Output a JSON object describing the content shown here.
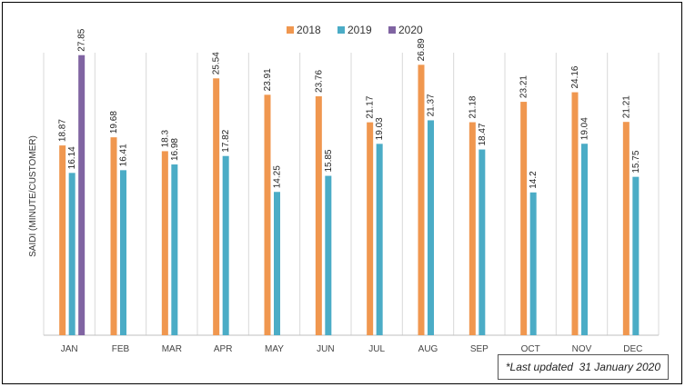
{
  "chart_data": {
    "type": "bar",
    "title": "",
    "xlabel": "",
    "ylabel": "SAIDI (MINUTE/CUSTOMER)",
    "ylim": [
      0,
      30
    ],
    "grid": "vertical category dividers",
    "legend_position": "top",
    "categories": [
      "JAN",
      "FEB",
      "MAR",
      "APR",
      "MAY",
      "JUN",
      "JUL",
      "AUG",
      "SEP",
      "OCT",
      "NOV",
      "DEC"
    ],
    "series": [
      {
        "name": "2018",
        "color": "#f0974f",
        "values": [
          18.87,
          19.68,
          18.3,
          25.54,
          23.91,
          23.76,
          21.17,
          26.89,
          21.18,
          23.21,
          24.16,
          21.21
        ],
        "labels": [
          "18.87",
          "19.68",
          "18.3",
          "25.54",
          "23.91",
          "23.76",
          "21.17",
          "26.89",
          "21.18",
          "23.21",
          "24.16",
          "21.21"
        ]
      },
      {
        "name": "2019",
        "color": "#4bacc6",
        "values": [
          16.14,
          16.41,
          16.98,
          17.82,
          14.25,
          15.85,
          19.03,
          21.37,
          18.47,
          14.2,
          19.04,
          15.75
        ],
        "labels": [
          "16.14",
          "16.41",
          "16.98",
          "17.82",
          "14.25",
          "15.85",
          "19.03",
          "21.37",
          "18.47",
          "14.2",
          "19.04",
          "15.75"
        ]
      },
      {
        "name": "2020",
        "color": "#8064a2",
        "values": [
          27.85,
          null,
          null,
          null,
          null,
          null,
          null,
          null,
          null,
          null,
          null,
          null
        ],
        "labels": [
          "27.85",
          "",
          "",
          "",
          "",
          "",
          "",
          "",
          "",
          "",
          "",
          ""
        ]
      }
    ]
  },
  "note": "*Last updated  31 January 2020"
}
